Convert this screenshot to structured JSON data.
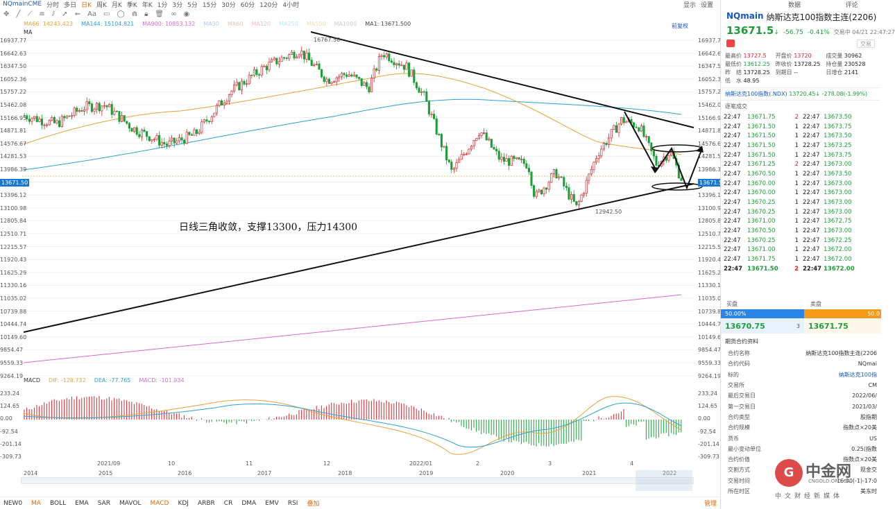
{
  "topbar": {
    "symbol": "NQmainCME",
    "periods": [
      "分时",
      "多日",
      "日K",
      "周K",
      "月K",
      "季K",
      "年K",
      "1分",
      "3分",
      "5分",
      "15分",
      "30分",
      "60分",
      "120分",
      "4小时"
    ],
    "right": [
      "显示",
      "设置"
    ]
  },
  "legend": {
    "main": [
      {
        "label": "MA66: 14243.423",
        "color": "#e8a23a"
      },
      {
        "label": "MA144: 15104.821",
        "color": "#2aa0d8"
      },
      {
        "label": "MA900: 10853.132",
        "color": "#d86bd0"
      },
      {
        "label": "MA30",
        "color": "#b6c7e6"
      },
      {
        "label": "MA60",
        "color": "#e6c8b6"
      },
      {
        "label": "MA120",
        "color": "#f0b8d0"
      },
      {
        "label": "MA250",
        "color": "#b8e6f0"
      },
      {
        "label": "MA500",
        "color": "#f0e0b0"
      },
      {
        "label": "MA1000",
        "color": "#cccccc"
      },
      {
        "label": "MA1: 13671.500",
        "color": "#444444"
      }
    ],
    "ma_label": "MA",
    "fuquan": "前复权"
  },
  "price_axis": [
    "16937.77",
    "16642.63",
    "16347.50",
    "16052.36",
    "15757.22",
    "15462.08",
    "15166.95",
    "14871.81",
    "14576.67",
    "14281.53",
    "13986.39",
    "13671.50",
    "13396.12",
    "13100.98",
    "12805.84",
    "12510.71",
    "12215.57",
    "11920.43",
    "11625.29",
    "11330.16",
    "11035.02",
    "10739.88",
    "10444.74",
    "10149.60",
    "9854.47",
    "9559.33",
    "9264.19"
  ],
  "current_price": "13671.50",
  "annotations": {
    "high_label": "16767.50",
    "low_label": "12942.50",
    "note": "日线三角收敛，支撑13300，压力14300"
  },
  "macd": {
    "legend": [
      {
        "label": "MACD",
        "color": "#333333"
      },
      {
        "label": "DIF: -128.732",
        "color": "#e8a23a"
      },
      {
        "label": "DEA: -77.765",
        "color": "#2aa0d8"
      },
      {
        "label": "MACD: -101.934",
        "color": "#d86bd0"
      }
    ],
    "axis": [
      "233.24",
      "124.65",
      "0.00",
      "-92.54",
      "-201.14",
      "-309.73"
    ]
  },
  "time_axis": {
    "upper": [
      "2021/09",
      "10",
      "11",
      "12",
      "2022/01",
      "2",
      "3",
      "4"
    ],
    "lower": [
      "2014",
      "2015",
      "2016",
      "2017",
      "2018",
      "2019",
      "2020",
      "2021",
      "2022"
    ]
  },
  "indicators": [
    "NEW0",
    "MA",
    "BOLL",
    "EMA",
    "SAR",
    "MAVOL",
    "MACD",
    "KDJ",
    "ARBR",
    "CR",
    "DMA",
    "EMV",
    "RSI",
    "叠加"
  ],
  "indicators_active": [
    "MA",
    "MACD"
  ],
  "manage": "管理",
  "sidebar": {
    "tabs": [
      "",
      "数据",
      "评论"
    ],
    "code": "NQmain",
    "name": "纳斯达克100指数主连(2206)",
    "price": "13671.5",
    "arrow": "↓",
    "change": "-56.75",
    "change_pct": "-0.41%",
    "status": "交易中 04/21 22:47:27",
    "stats": [
      {
        "k": "最高价",
        "v": "13727.5",
        "c": "up"
      },
      {
        "k": "开盘价",
        "v": "13720",
        "c": "up"
      },
      {
        "k": "成交量",
        "v": "30962",
        "c": ""
      },
      {
        "k": "最低价",
        "v": "13612.25",
        "c": "down"
      },
      {
        "k": "昨收价",
        "v": "13728.25",
        "c": ""
      },
      {
        "k": "持仓量",
        "v": "230528",
        "c": ""
      },
      {
        "k": "昨　结",
        "v": "13728.25",
        "c": ""
      },
      {
        "k": "到期日",
        "v": "--",
        "c": ""
      },
      {
        "k": "日增仓",
        "v": "2141",
        "c": ""
      },
      {
        "k": "低　水",
        "v": "48.95",
        "c": ""
      }
    ],
    "ndx_name": "纳斯达克100指数(.NDX)",
    "ndx_value": "13720.45↓ -278.08(-1.99%)",
    "trades_title": "逐笔成交",
    "trades": [
      [
        "22:47",
        "13671.75",
        "2",
        "22:47",
        "13673.50",
        "down"
      ],
      [
        "22:47",
        "13671.50",
        "1",
        "22:47",
        "13673.75",
        "down"
      ],
      [
        "22:47",
        "13671.50",
        "1",
        "22:47",
        "13673.50",
        "down"
      ],
      [
        "22:47",
        "13671.50",
        "1",
        "22:47",
        "13673.25",
        "down"
      ],
      [
        "22:47",
        "13671.50",
        "1",
        "22:47",
        "13673.75",
        "down"
      ],
      [
        "22:47",
        "13671.25",
        "2",
        "22:47",
        "13673.00",
        "down"
      ],
      [
        "22:47",
        "13670.50",
        "1",
        "22:47",
        "13673.50",
        "down"
      ],
      [
        "22:47",
        "13670.00",
        "1",
        "22:47",
        "13673.00",
        "down"
      ],
      [
        "22:47",
        "13670.00",
        "1",
        "22:47",
        "13673.00",
        "down"
      ],
      [
        "22:47",
        "13670.25",
        "1",
        "22:47",
        "13673.00",
        "up"
      ],
      [
        "22:47",
        "13670.25",
        "1",
        "22:47",
        "13673.00",
        "up"
      ],
      [
        "22:47",
        "13671.00",
        "1",
        "22:47",
        "13672.75",
        "up"
      ],
      [
        "22:47",
        "13670.50",
        "1",
        "22:47",
        "13673.00",
        "down"
      ],
      [
        "22:47",
        "13670.25",
        "1",
        "22:47",
        "13672.25",
        "down"
      ],
      [
        "22:47",
        "13671.00",
        "1",
        "22:47",
        "13672.00",
        "up"
      ],
      [
        "22:47",
        "13671.75",
        "1",
        "22:47",
        "13672.00",
        "up"
      ],
      [
        "22:47",
        "13671.50",
        "2",
        "22:47",
        "13672.00",
        "up"
      ]
    ],
    "book": {
      "buy_label": "买盘",
      "sell_label": "卖盘",
      "buy_pct": "50.00%",
      "sell_pct": "50.0",
      "buy_price": "13670.75",
      "buy_qty": "3",
      "sell_price": "13671.75"
    },
    "info_title": "期货合约资料",
    "info": [
      {
        "k": "合约名称",
        "v": "纳斯达克100指数主连(2206"
      },
      {
        "k": "合约代码",
        "v": "NQmai"
      },
      {
        "k": "标的",
        "v": "纳斯达克100指",
        "link": true
      },
      {
        "k": "交易所",
        "v": "CM"
      },
      {
        "k": "最后交易日",
        "v": "2022/06/"
      },
      {
        "k": "第一交易日",
        "v": "2021/03/"
      },
      {
        "k": "合约类型",
        "v": "股指期"
      },
      {
        "k": "合约规模",
        "v": "指数点×20美"
      },
      {
        "k": "货币",
        "v": "US"
      },
      {
        "k": "最小变动单位",
        "v": "0.25(指数"
      },
      {
        "k": "合约价值",
        "v": "指数点×20美"
      },
      {
        "k": "交割方式",
        "v": "现金交"
      },
      {
        "k": "交易时间",
        "v": "16:00(-1)-17:0"
      },
      {
        "k": "所在时区",
        "v": "美东时"
      }
    ]
  },
  "watermark": {
    "logo_char": "G",
    "name": "中金网",
    "en": "CNGOLD.ORG.CN",
    "sub": "中文财经新媒体"
  }
}
